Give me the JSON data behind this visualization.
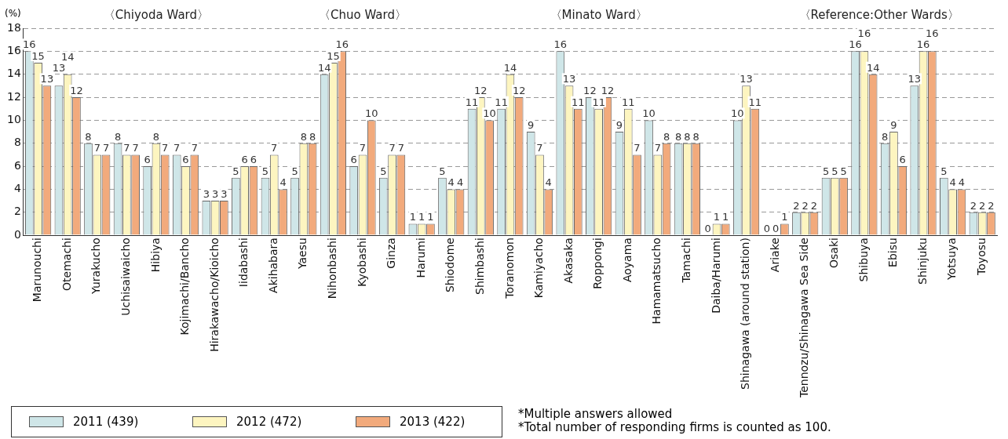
{
  "chart_data": {
    "type": "bar",
    "ylabel": "(%)",
    "categories": [
      "Marunouchi",
      "Otemachi",
      "Yurakucho",
      "Uchisaiwaicho",
      "Hibiya",
      "Kojimachi/Bancho",
      "Hirakawacho/Kioicho",
      "Iidabashi",
      "Akihabara",
      "Yaesu",
      "Nihonbashi",
      "Kyobashi",
      "Ginza",
      "Harumi",
      "Shiodome",
      "Shimbashi",
      "Toranomon",
      "Kamiyacho",
      "Akasaka",
      "Roppongi",
      "Aoyama",
      "Hamamatsucho",
      "Tamachi",
      "Daiba/Harumi",
      "Shinagawa (around station)",
      "Ariake",
      "Tennozu/Shinagawa Sea Side",
      "Osaki",
      "Shibuya",
      "Ebisu",
      "Shinjuku",
      "Yotsuya",
      "Toyosu"
    ],
    "series": [
      {
        "name": "2011 (439)",
        "color": "#cfe6e8",
        "values": [
          16,
          13,
          8,
          8,
          6,
          7,
          3,
          5,
          5,
          5,
          14,
          6,
          5,
          1,
          5,
          11,
          11,
          9,
          16,
          12,
          9,
          10,
          8,
          0,
          10,
          0,
          2,
          5,
          16,
          8,
          13,
          5,
          2
        ]
      },
      {
        "name": "2012 (472)",
        "color": "#fdf5c0",
        "values": [
          15,
          14,
          7,
          7,
          8,
          6,
          3,
          6,
          7,
          8,
          15,
          7,
          7,
          1,
          4,
          12,
          14,
          7,
          13,
          11,
          11,
          7,
          8,
          1,
          13,
          0,
          2,
          5,
          16,
          9,
          16,
          4,
          2
        ]
      },
      {
        "name": "2013 (422)",
        "color": "#f2aa7c",
        "values": [
          13,
          12,
          7,
          7,
          7,
          7,
          3,
          6,
          4,
          8,
          16,
          10,
          7,
          1,
          4,
          10,
          12,
          4,
          11,
          12,
          7,
          8,
          8,
          1,
          11,
          1,
          2,
          5,
          14,
          6,
          16,
          4,
          2
        ]
      }
    ],
    "ylim": [
      0,
      18
    ],
    "yticks": [
      0,
      2,
      4,
      6,
      8,
      10,
      12,
      14,
      16,
      18
    ],
    "grid": "y",
    "legend": "bottom left",
    "data_labels": true,
    "annotations": [
      "〈Chiyoda Ward〉",
      "〈Chuo Ward〉",
      "〈Minato Ward〉",
      "〈Reference:Other Wards〉",
      "*Multiple answers allowed",
      "*Total number of responding firms is counted as 100."
    ]
  }
}
